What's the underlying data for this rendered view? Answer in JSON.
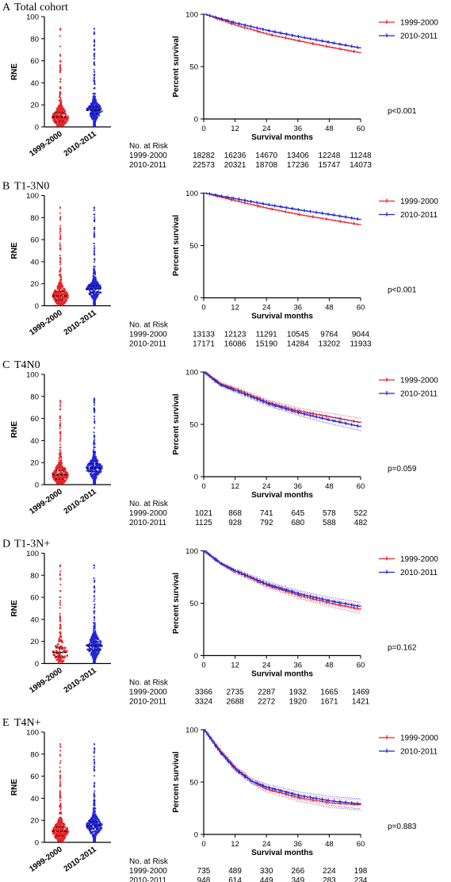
{
  "colors": {
    "group1": "#e8242a",
    "group2": "#2424d8",
    "axis": "#000000"
  },
  "chart_data": [
    {
      "panel": "A",
      "title": "Total cohort",
      "violin": {
        "type": "scatter",
        "ylabel": "RNE",
        "ylim": [
          0,
          100
        ],
        "yticks": [
          0,
          20,
          40,
          60,
          80,
          100
        ],
        "categories": [
          "1999-2000",
          "2010-2011"
        ],
        "medians": [
          9,
          15
        ],
        "q1": [
          5,
          12
        ],
        "q3": [
          13,
          18
        ],
        "max": [
          89,
          89
        ]
      },
      "km": {
        "type": "line",
        "xlabel": "Survival months",
        "ylabel": "Percent survival",
        "xlim": [
          0,
          60
        ],
        "ylim": [
          0,
          100
        ],
        "xticks": [
          0,
          12,
          24,
          36,
          48,
          60
        ],
        "yticks": [
          0,
          50,
          100
        ],
        "series": [
          {
            "name": "1999-2000",
            "x": [
              0,
              12,
              24,
              36,
              48,
              60
            ],
            "y": [
              100,
              89.5,
              81,
              74.5,
              68.5,
              63
            ]
          },
          {
            "name": "2010-2011",
            "x": [
              0,
              12,
              24,
              36,
              48,
              60
            ],
            "y": [
              100,
              91.5,
              84.5,
              78.5,
              73,
              67.5
            ]
          }
        ],
        "ci": false,
        "pvalue": "p<0.001"
      },
      "risk_table": {
        "header": "No. at Risk",
        "rows": [
          {
            "label": "1999-2000",
            "values": [
              "18282",
              "16236",
              "14670",
              "13406",
              "12248",
              "11248"
            ]
          },
          {
            "label": "2010-2011",
            "values": [
              "22573",
              "20321",
              "18708",
              "17236",
              "15747",
              "14073"
            ]
          }
        ]
      }
    },
    {
      "panel": "B",
      "title": "T1-3N0",
      "violin": {
        "type": "scatter",
        "ylabel": "RNE",
        "ylim": [
          0,
          100
        ],
        "yticks": [
          0,
          20,
          40,
          60,
          80,
          100
        ],
        "categories": [
          "1999-2000",
          "2010-2011"
        ],
        "medians": [
          9,
          15
        ],
        "q1": [
          5,
          12
        ],
        "q3": [
          13,
          18
        ],
        "max": [
          89,
          89
        ]
      },
      "km": {
        "type": "line",
        "xlabel": "Survival months",
        "ylabel": "Percent survival",
        "xlim": [
          0,
          60
        ],
        "ylim": [
          0,
          100
        ],
        "xticks": [
          0,
          12,
          24,
          36,
          48,
          60
        ],
        "yticks": [
          0,
          50,
          100
        ],
        "series": [
          {
            "name": "1999-2000",
            "x": [
              0,
              12,
              24,
              36,
              48,
              60
            ],
            "y": [
              100,
              92.5,
              85.5,
              79.5,
              74.5,
              69.5
            ]
          },
          {
            "name": "2010-2011",
            "x": [
              0,
              12,
              24,
              36,
              48,
              60
            ],
            "y": [
              100,
              94.5,
              89,
              84,
              79.5,
              74.5
            ]
          }
        ],
        "ci": false,
        "pvalue": "p<0.001"
      },
      "risk_table": {
        "header": "No. at Risk",
        "rows": [
          {
            "label": "1999-2000",
            "values": [
              "13133",
              "12123",
              "11291",
              "10545",
              "9764",
              "9044"
            ]
          },
          {
            "label": "2010-2011",
            "values": [
              "17171",
              "16086",
              "15190",
              "14284",
              "13202",
              "11933"
            ]
          }
        ]
      }
    },
    {
      "panel": "C",
      "title": "T4N0",
      "violin": {
        "type": "scatter",
        "ylabel": "RNE",
        "ylim": [
          0,
          100
        ],
        "yticks": [
          0,
          20,
          40,
          60,
          80,
          100
        ],
        "categories": [
          "1999-2000",
          "2010-2011"
        ],
        "medians": [
          9,
          15
        ],
        "q1": [
          5,
          12
        ],
        "q3": [
          13,
          19
        ],
        "max": [
          76,
          78
        ]
      },
      "km": {
        "type": "line",
        "xlabel": "Survival months",
        "ylabel": "Percent survival",
        "xlim": [
          0,
          60
        ],
        "ylim": [
          0,
          100
        ],
        "xticks": [
          0,
          12,
          24,
          36,
          48,
          60
        ],
        "yticks": [
          0,
          50,
          100
        ],
        "series": [
          {
            "name": "1999-2000",
            "x": [
              0,
              6,
              12,
              24,
              36,
              48,
              60
            ],
            "y": [
              100,
              89,
              83.5,
              71,
              62.5,
              57,
              51.5
            ]
          },
          {
            "name": "2010-2011",
            "x": [
              0,
              6,
              12,
              24,
              36,
              48,
              60
            ],
            "y": [
              100,
              88,
              82,
              70,
              61,
              54,
              47.5
            ]
          }
        ],
        "ci": true,
        "pvalue": "p=0.059"
      },
      "risk_table": {
        "header": "No. at Risk",
        "rows": [
          {
            "label": "1999-2000",
            "values": [
              "1021",
              "868",
              "741",
              "645",
              "578",
              "522"
            ]
          },
          {
            "label": "2010-2011",
            "values": [
              "1125",
              "928",
              "792",
              "680",
              "588",
              "482"
            ]
          }
        ]
      }
    },
    {
      "panel": "D",
      "title": "T1-3N+",
      "violin": {
        "type": "scatter",
        "ylabel": "RNE",
        "ylim": [
          0,
          100
        ],
        "yticks": [
          0,
          20,
          40,
          60,
          80,
          100
        ],
        "categories": [
          "1999-2000",
          "2010-2011"
        ],
        "medians": [
          10,
          16
        ],
        "q1": [
          6,
          12
        ],
        "q3": [
          14,
          20
        ],
        "max": [
          89,
          89
        ]
      },
      "km": {
        "type": "line",
        "xlabel": "Survival months",
        "ylabel": "Percent survival",
        "xlim": [
          0,
          60
        ],
        "ylim": [
          0,
          100
        ],
        "xticks": [
          0,
          12,
          24,
          36,
          48,
          60
        ],
        "yticks": [
          0,
          50,
          100
        ],
        "series": [
          {
            "name": "1999-2000",
            "x": [
              0,
              6,
              12,
              24,
              36,
              48,
              60
            ],
            "y": [
              100,
              88.5,
              80,
              67,
              57.5,
              50,
              44
            ]
          },
          {
            "name": "2010-2011",
            "x": [
              0,
              6,
              12,
              24,
              36,
              48,
              60
            ],
            "y": [
              100,
              88.5,
              80.5,
              68,
              59,
              52,
              46.5
            ]
          }
        ],
        "ci": true,
        "pvalue": "p=0.162"
      },
      "risk_table": {
        "header": "No. at Risk",
        "rows": [
          {
            "label": "1999-2000",
            "values": [
              "3366",
              "2735",
              "2287",
              "1932",
              "1665",
              "1469"
            ]
          },
          {
            "label": "2010-2011",
            "values": [
              "3324",
              "2688",
              "2272",
              "1920",
              "1671",
              "1421"
            ]
          }
        ]
      }
    },
    {
      "panel": "E",
      "title": "T4N+",
      "violin": {
        "type": "scatter",
        "ylabel": "RNE",
        "ylim": [
          0,
          100
        ],
        "yticks": [
          0,
          20,
          40,
          60,
          80,
          100
        ],
        "categories": [
          "1999-2000",
          "2010-2011"
        ],
        "medians": [
          10,
          15
        ],
        "q1": [
          6,
          12
        ],
        "q3": [
          14,
          19
        ],
        "max": [
          89,
          89
        ]
      },
      "km": {
        "type": "line",
        "xlabel": "Survival months",
        "ylabel": "Percent survival",
        "xlim": [
          0,
          60
        ],
        "ylim": [
          0,
          100
        ],
        "xticks": [
          0,
          12,
          24,
          36,
          48,
          60
        ],
        "yticks": [
          0,
          50,
          100
        ],
        "series": [
          {
            "name": "1999-2000",
            "x": [
              0,
              6,
              12,
              18,
              24,
              36,
              48,
              60
            ],
            "y": [
              100,
              80,
              63,
              51,
              43,
              35,
              30,
              28
            ]
          },
          {
            "name": "2010-2011",
            "x": [
              0,
              6,
              12,
              18,
              24,
              36,
              48,
              60
            ],
            "y": [
              100,
              79,
              62,
              51,
              45,
              37,
              32,
              29
            ]
          }
        ],
        "ci": true,
        "pvalue": "p=0.883"
      },
      "risk_table": {
        "header": "No. at Risk",
        "rows": [
          {
            "label": "1999-2000",
            "values": [
              "735",
              "489",
              "330",
              "266",
              "224",
              "198"
            ]
          },
          {
            "label": "2010-2011",
            "values": [
              "948",
              "614",
              "449",
              "349",
              "283",
              "234"
            ]
          }
        ]
      }
    }
  ]
}
